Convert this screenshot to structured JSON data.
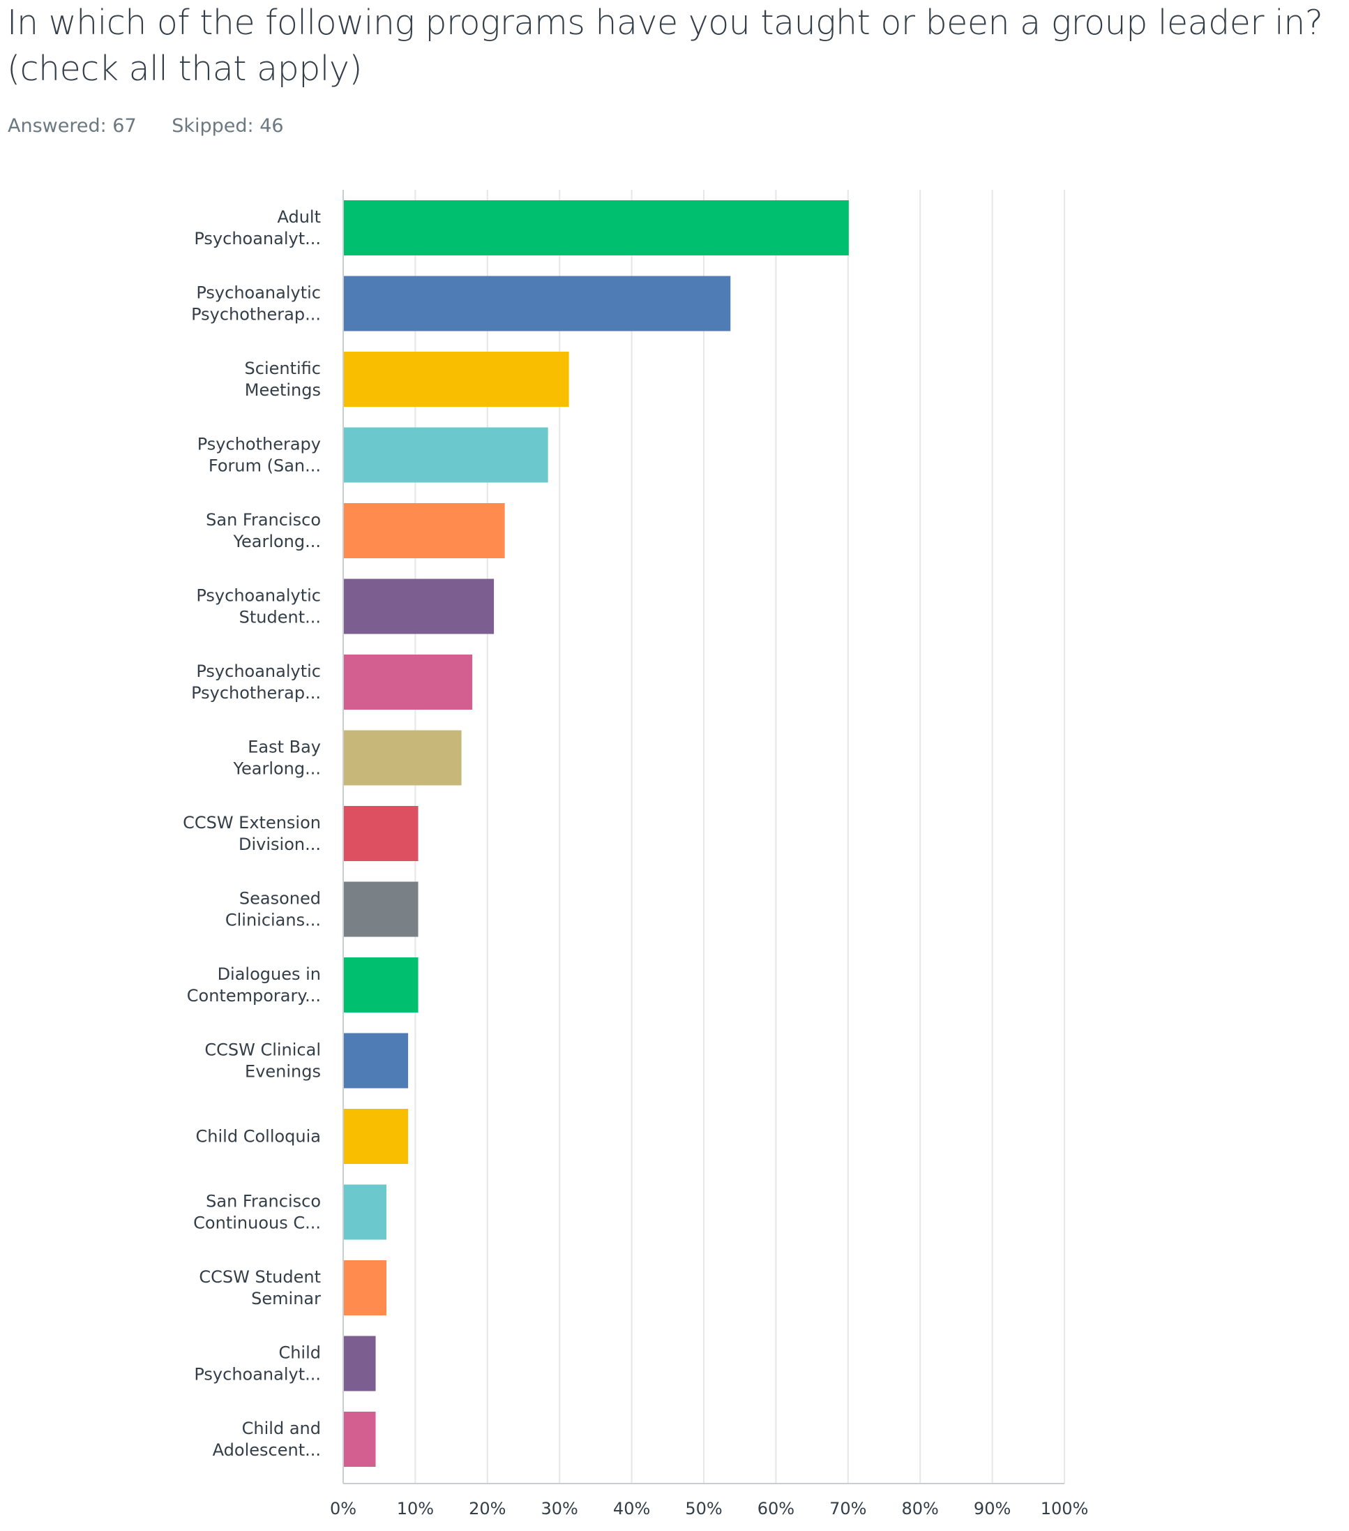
{
  "question": {
    "title": "In which of the following programs have you taught or been a group leader in? (check all that apply)"
  },
  "stats": {
    "answered_label": "Answered:",
    "answered_value": "67",
    "skipped_label": "Skipped:",
    "skipped_value": "46"
  },
  "chart_data": {
    "type": "bar",
    "orientation": "horizontal",
    "title": "In which of the following programs have you taught or been a group leader in? (check all that apply)",
    "xlabel": "",
    "ylabel": "",
    "xlim": [
      0,
      100
    ],
    "unit": "%",
    "grid": true,
    "legend": "none",
    "ticks": [
      "0%",
      "10%",
      "20%",
      "30%",
      "40%",
      "50%",
      "60%",
      "70%",
      "80%",
      "90%",
      "100%"
    ],
    "categories": [
      [
        "Adult",
        "Psychoanalyt..."
      ],
      [
        "Psychoanalytic",
        "Psychotherap..."
      ],
      [
        "Scientific",
        "Meetings"
      ],
      [
        "Psychotherapy",
        "Forum (San..."
      ],
      [
        "San Francisco",
        "Yearlong..."
      ],
      [
        "Psychoanalytic",
        "Student..."
      ],
      [
        "Psychoanalytic",
        "Psychotherap..."
      ],
      [
        "East Bay",
        "Yearlong..."
      ],
      [
        "CCSW Extension",
        "Division..."
      ],
      [
        "Seasoned",
        "Clinicians..."
      ],
      [
        "Dialogues in",
        "Contemporary..."
      ],
      [
        "CCSW Clinical",
        "Evenings"
      ],
      [
        "Child Colloquia"
      ],
      [
        "San Francisco",
        "Continuous C..."
      ],
      [
        "CCSW Student",
        "Seminar"
      ],
      [
        "Child",
        "Psychoanalyt..."
      ],
      [
        "Child and",
        "Adolescent..."
      ]
    ],
    "values": [
      70.1,
      53.7,
      31.3,
      28.4,
      22.4,
      20.9,
      17.9,
      16.4,
      10.4,
      10.4,
      10.4,
      9.0,
      9.0,
      6.0,
      6.0,
      4.5,
      4.5
    ],
    "colors": [
      "#00bf6f",
      "#507cb6",
      "#f9be00",
      "#6bc8cd",
      "#ff8b4f",
      "#7d5e90",
      "#d25f90",
      "#c7b879",
      "#dc5061",
      "#798186",
      "#00bf6f",
      "#507cb6",
      "#f9be00",
      "#6bc8cd",
      "#ff8b4f",
      "#7d5e90",
      "#d25f90"
    ]
  }
}
